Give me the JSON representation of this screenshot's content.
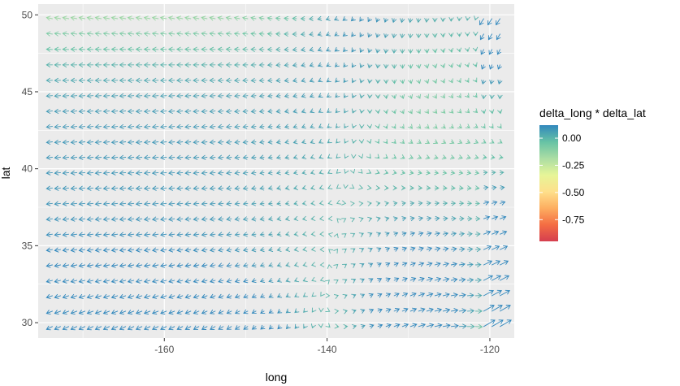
{
  "chart_data": {
    "type": "vector_field",
    "title": "",
    "xlabel": "long",
    "ylabel": "lat",
    "xlim": [
      -175.5,
      -117
    ],
    "ylim": [
      29,
      50.7
    ],
    "x_ticks": [
      -160,
      -140,
      -120
    ],
    "y_ticks": [
      30,
      35,
      40,
      45,
      50
    ],
    "x_tick_labels": [
      "-160",
      "-140",
      "-120"
    ],
    "y_tick_labels": [
      "30",
      "35",
      "40",
      "45",
      "50"
    ],
    "grid": {
      "long_start": -173.75,
      "long_step": 1.0,
      "long_count": 56,
      "lat_start": 29.75,
      "lat_step": 1.0,
      "lat_count": 21
    },
    "panel_background": "#ebebeb",
    "grid_color": "#ffffff",
    "field_description": "arrows showing (delta_long, delta_lat) at each grid location; colour encodes delta_long * delta_lat",
    "legend": {
      "title": "delta_long * delta_lat",
      "position": "right",
      "range": [
        -0.95,
        0.12
      ],
      "breaks": [
        0.0,
        -0.25,
        -0.5,
        -0.75
      ],
      "labels": [
        "0.00",
        "-0.25",
        "-0.50",
        "-0.75"
      ],
      "colors": [
        "#d53e4f",
        "#f46d43",
        "#fdae61",
        "#fee08b",
        "#e6f598",
        "#abdda4",
        "#66c2a5",
        "#3288bd"
      ]
    }
  }
}
